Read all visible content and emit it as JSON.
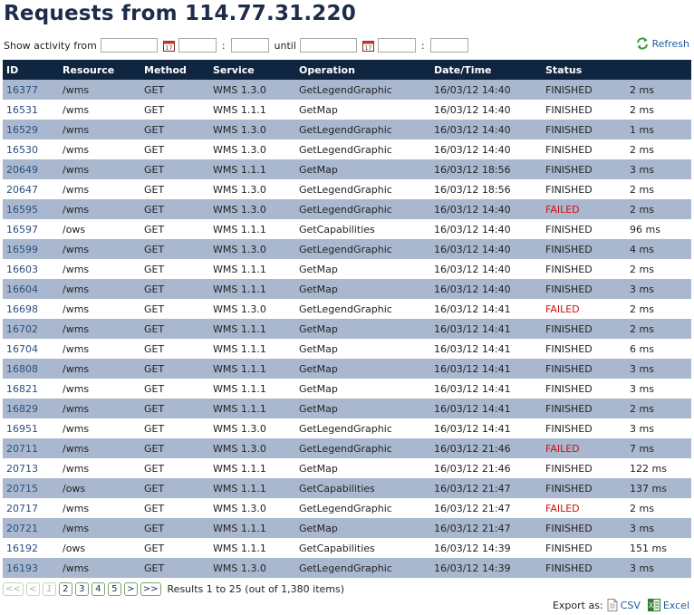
{
  "page_title": "Requests from 114.77.31.220",
  "filter": {
    "show_label": "Show activity from",
    "from_date": "",
    "from_hour": "",
    "from_min": "",
    "sep1": ":",
    "until_label": "until",
    "until_date": "",
    "until_hour": "",
    "until_min": "",
    "sep2": ":"
  },
  "refresh_label": "Refresh",
  "columns": [
    "ID",
    "Resource",
    "Method",
    "Service",
    "Operation",
    "Date/Time",
    "Status",
    ""
  ],
  "rows": [
    {
      "id": "16377",
      "resource": "/wms",
      "method": "GET",
      "service": "WMS 1.3.0",
      "operation": "GetLegendGraphic",
      "datetime": "16/03/12 14:40",
      "status": "FINISHED",
      "duration": "2 ms"
    },
    {
      "id": "16531",
      "resource": "/wms",
      "method": "GET",
      "service": "WMS 1.1.1",
      "operation": "GetMap",
      "datetime": "16/03/12 14:40",
      "status": "FINISHED",
      "duration": "2 ms"
    },
    {
      "id": "16529",
      "resource": "/wms",
      "method": "GET",
      "service": "WMS 1.3.0",
      "operation": "GetLegendGraphic",
      "datetime": "16/03/12 14:40",
      "status": "FINISHED",
      "duration": "1 ms"
    },
    {
      "id": "16530",
      "resource": "/wms",
      "method": "GET",
      "service": "WMS 1.3.0",
      "operation": "GetLegendGraphic",
      "datetime": "16/03/12 14:40",
      "status": "FINISHED",
      "duration": "2 ms"
    },
    {
      "id": "20649",
      "resource": "/wms",
      "method": "GET",
      "service": "WMS 1.1.1",
      "operation": "GetMap",
      "datetime": "16/03/12 18:56",
      "status": "FINISHED",
      "duration": "3 ms"
    },
    {
      "id": "20647",
      "resource": "/wms",
      "method": "GET",
      "service": "WMS 1.3.0",
      "operation": "GetLegendGraphic",
      "datetime": "16/03/12 18:56",
      "status": "FINISHED",
      "duration": "2 ms"
    },
    {
      "id": "16595",
      "resource": "/wms",
      "method": "GET",
      "service": "WMS 1.3.0",
      "operation": "GetLegendGraphic",
      "datetime": "16/03/12 14:40",
      "status": "FAILED",
      "duration": "2 ms"
    },
    {
      "id": "16597",
      "resource": "/ows",
      "method": "GET",
      "service": "WMS 1.1.1",
      "operation": "GetCapabilities",
      "datetime": "16/03/12 14:40",
      "status": "FINISHED",
      "duration": "96 ms"
    },
    {
      "id": "16599",
      "resource": "/wms",
      "method": "GET",
      "service": "WMS 1.3.0",
      "operation": "GetLegendGraphic",
      "datetime": "16/03/12 14:40",
      "status": "FINISHED",
      "duration": "4 ms"
    },
    {
      "id": "16603",
      "resource": "/wms",
      "method": "GET",
      "service": "WMS 1.1.1",
      "operation": "GetMap",
      "datetime": "16/03/12 14:40",
      "status": "FINISHED",
      "duration": "2 ms"
    },
    {
      "id": "16604",
      "resource": "/wms",
      "method": "GET",
      "service": "WMS 1.1.1",
      "operation": "GetMap",
      "datetime": "16/03/12 14:40",
      "status": "FINISHED",
      "duration": "3 ms"
    },
    {
      "id": "16698",
      "resource": "/wms",
      "method": "GET",
      "service": "WMS 1.3.0",
      "operation": "GetLegendGraphic",
      "datetime": "16/03/12 14:41",
      "status": "FAILED",
      "duration": "2 ms"
    },
    {
      "id": "16702",
      "resource": "/wms",
      "method": "GET",
      "service": "WMS 1.1.1",
      "operation": "GetMap",
      "datetime": "16/03/12 14:41",
      "status": "FINISHED",
      "duration": "2 ms"
    },
    {
      "id": "16704",
      "resource": "/wms",
      "method": "GET",
      "service": "WMS 1.1.1",
      "operation": "GetMap",
      "datetime": "16/03/12 14:41",
      "status": "FINISHED",
      "duration": "6 ms"
    },
    {
      "id": "16808",
      "resource": "/wms",
      "method": "GET",
      "service": "WMS 1.1.1",
      "operation": "GetMap",
      "datetime": "16/03/12 14:41",
      "status": "FINISHED",
      "duration": "3 ms"
    },
    {
      "id": "16821",
      "resource": "/wms",
      "method": "GET",
      "service": "WMS 1.1.1",
      "operation": "GetMap",
      "datetime": "16/03/12 14:41",
      "status": "FINISHED",
      "duration": "3 ms"
    },
    {
      "id": "16829",
      "resource": "/wms",
      "method": "GET",
      "service": "WMS 1.1.1",
      "operation": "GetMap",
      "datetime": "16/03/12 14:41",
      "status": "FINISHED",
      "duration": "2 ms"
    },
    {
      "id": "16951",
      "resource": "/wms",
      "method": "GET",
      "service": "WMS 1.3.0",
      "operation": "GetLegendGraphic",
      "datetime": "16/03/12 14:41",
      "status": "FINISHED",
      "duration": "3 ms"
    },
    {
      "id": "20711",
      "resource": "/wms",
      "method": "GET",
      "service": "WMS 1.3.0",
      "operation": "GetLegendGraphic",
      "datetime": "16/03/12 21:46",
      "status": "FAILED",
      "duration": "7 ms"
    },
    {
      "id": "20713",
      "resource": "/wms",
      "method": "GET",
      "service": "WMS 1.1.1",
      "operation": "GetMap",
      "datetime": "16/03/12 21:46",
      "status": "FINISHED",
      "duration": "122 ms"
    },
    {
      "id": "20715",
      "resource": "/ows",
      "method": "GET",
      "service": "WMS 1.1.1",
      "operation": "GetCapabilities",
      "datetime": "16/03/12 21:47",
      "status": "FINISHED",
      "duration": "137 ms"
    },
    {
      "id": "20717",
      "resource": "/wms",
      "method": "GET",
      "service": "WMS 1.3.0",
      "operation": "GetLegendGraphic",
      "datetime": "16/03/12 21:47",
      "status": "FAILED",
      "duration": "2 ms"
    },
    {
      "id": "20721",
      "resource": "/wms",
      "method": "GET",
      "service": "WMS 1.1.1",
      "operation": "GetMap",
      "datetime": "16/03/12 21:47",
      "status": "FINISHED",
      "duration": "3 ms"
    },
    {
      "id": "16192",
      "resource": "/ows",
      "method": "GET",
      "service": "WMS 1.1.1",
      "operation": "GetCapabilities",
      "datetime": "16/03/12 14:39",
      "status": "FINISHED",
      "duration": "151 ms"
    },
    {
      "id": "16193",
      "resource": "/wms",
      "method": "GET",
      "service": "WMS 1.3.0",
      "operation": "GetLegendGraphic",
      "datetime": "16/03/12 14:39",
      "status": "FINISHED",
      "duration": "3 ms"
    }
  ],
  "pager": {
    "first": "<<",
    "prev": "<",
    "pages": [
      "1",
      "2",
      "3",
      "4",
      "5"
    ],
    "current": "1",
    "next": ">",
    "last": ">>",
    "result_text": "Results 1 to 25 (out of 1,380 items)"
  },
  "export": {
    "label": "Export as:",
    "csv": "CSV",
    "excel": "Excel"
  },
  "colors": {
    "header_bg": "#0f2540",
    "odd_row": "#a9b8cf",
    "failed": "#cc1111",
    "link": "#1f5c99"
  },
  "icons": [
    "calendar-icon",
    "refresh-icon",
    "csv-file-icon",
    "excel-file-icon"
  ]
}
